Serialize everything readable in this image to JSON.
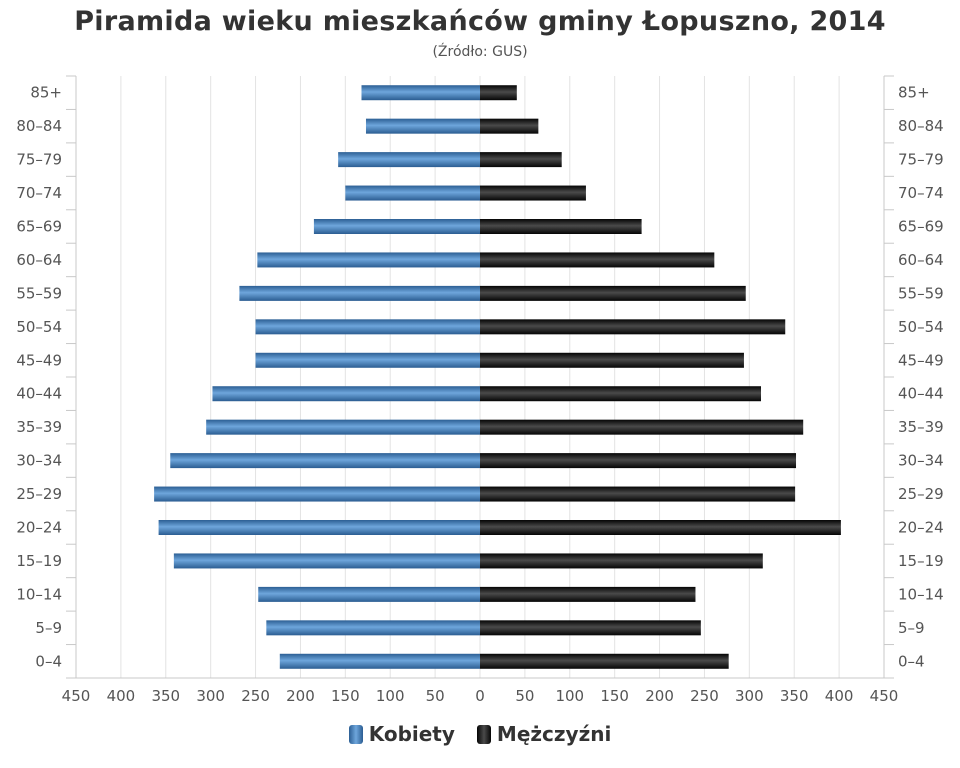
{
  "chart_data": {
    "type": "bar",
    "orientation": "horizontal-population-pyramid",
    "title": "Piramida wieku mieszkańców gminy Łopuszno, 2014",
    "subtitle": "(Źródło: GUS)",
    "categories": [
      "85+",
      "80–84",
      "75–79",
      "70–74",
      "65–69",
      "60–64",
      "55–59",
      "50–54",
      "45–49",
      "40–44",
      "35–39",
      "30–34",
      "25–29",
      "20–24",
      "15–19",
      "10–14",
      "5–9",
      "0–4"
    ],
    "series": [
      {
        "name": "Kobiety",
        "color": "#3d7ab8",
        "values": [
          132,
          127,
          158,
          150,
          185,
          248,
          268,
          250,
          250,
          298,
          305,
          345,
          363,
          358,
          341,
          247,
          238,
          223
        ]
      },
      {
        "name": "Mężczyźni",
        "color": "#1a1a1a",
        "values": [
          41,
          65,
          91,
          118,
          180,
          261,
          296,
          340,
          294,
          313,
          360,
          352,
          351,
          402,
          315,
          240,
          246,
          277
        ]
      }
    ],
    "x_ticks": [
      "450",
      "400",
      "350",
      "300",
      "250",
      "200",
      "150",
      "100",
      "50",
      "0",
      "50",
      "100",
      "150",
      "200",
      "250",
      "300",
      "350",
      "400",
      "450"
    ],
    "xlim": [
      -450,
      450
    ],
    "grid": true,
    "legend_position": "bottom-center"
  }
}
